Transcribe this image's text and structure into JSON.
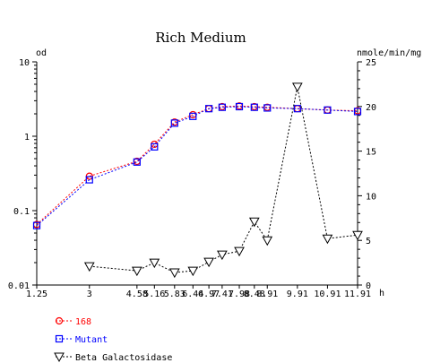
{
  "chart_data": {
    "type": "line",
    "title": "Rich Medium",
    "y_left_label": "od",
    "y_right_label": "nmole/min/mg",
    "x_unit_label": "h",
    "y_left_scale": "log",
    "y_left_ticks": [
      "10",
      "1",
      "0.1",
      "0.01"
    ],
    "y_left_tick_values": [
      10,
      1,
      0.1,
      0.01
    ],
    "y_left_range": [
      0.01,
      10
    ],
    "y_right_ticks": [
      "25",
      "20",
      "15",
      "10",
      "5",
      "0"
    ],
    "y_right_tick_values": [
      25,
      20,
      15,
      10,
      5,
      0
    ],
    "y_right_range": [
      0,
      25
    ],
    "x_tick_labels": [
      "1.25",
      "3",
      "4.58",
      "5.16",
      "5.83",
      "6.44",
      "6.97",
      "7.41",
      "7.98",
      "8.48",
      "8.91",
      "9.91",
      "10.91",
      "11.91"
    ],
    "x_tick_values": [
      1.25,
      3,
      4.58,
      5.16,
      5.83,
      6.44,
      6.97,
      7.41,
      7.98,
      8.48,
      8.91,
      9.91,
      10.91,
      11.91
    ],
    "x_range": [
      1.25,
      11.91
    ],
    "grid": false,
    "legend_position": "bottom-left",
    "series": [
      {
        "name": "168",
        "axis": "left",
        "marker": "circle",
        "color": "#ff0000",
        "line_style": "dashed",
        "x": [
          1.25,
          3,
          4.58,
          5.16,
          5.83,
          6.44,
          6.97,
          7.41,
          7.98,
          8.48,
          8.91,
          9.91,
          10.91,
          11.91
        ],
        "values": [
          0.065,
          0.29,
          0.46,
          0.78,
          1.55,
          1.95,
          2.35,
          2.5,
          2.55,
          2.5,
          2.45,
          2.35,
          2.25,
          2.2
        ]
      },
      {
        "name": "Mutant",
        "axis": "left",
        "marker": "square",
        "color": "#0000ff",
        "line_style": "dashed",
        "x": [
          1.25,
          3,
          4.58,
          5.16,
          5.83,
          6.44,
          6.97,
          7.41,
          7.98,
          8.48,
          8.91,
          9.91,
          10.91,
          11.91
        ],
        "values": [
          0.063,
          0.26,
          0.45,
          0.72,
          1.5,
          1.85,
          2.35,
          2.45,
          2.5,
          2.45,
          2.4,
          2.35,
          2.25,
          2.15
        ]
      },
      {
        "name": "Beta Galactosidase",
        "axis": "right",
        "marker": "triangle-down",
        "color": "#000000",
        "line_style": "dashed",
        "x": [
          3,
          4.58,
          5.16,
          5.83,
          6.44,
          6.97,
          7.41,
          7.98,
          8.48,
          8.91,
          9.91,
          10.91,
          11.91
        ],
        "values": [
          2.1,
          1.6,
          2.5,
          1.4,
          1.6,
          2.6,
          3.4,
          3.8,
          7.1,
          5.0,
          22.2,
          5.2,
          5.6
        ]
      }
    ]
  }
}
